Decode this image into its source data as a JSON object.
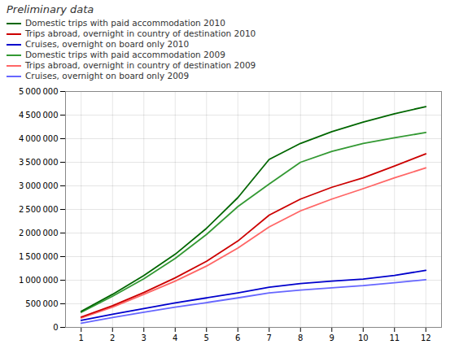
{
  "chart_data": {
    "type": "line",
    "title": "Preliminary data",
    "x": [
      1,
      2,
      3,
      4,
      5,
      6,
      7,
      8,
      9,
      10,
      11,
      12
    ],
    "series": [
      {
        "name": "Domestic trips with paid accommodation  2010",
        "color": "#006600",
        "values": [
          340000,
          700000,
          1100000,
          1550000,
          2100000,
          2750000,
          3560000,
          3900000,
          4150000,
          4350000,
          4530000,
          4680000
        ]
      },
      {
        "name": "Trips abroad, overnight in country  of destination 2010",
        "color": "#cc0000",
        "values": [
          220000,
          460000,
          740000,
          1050000,
          1400000,
          1830000,
          2380000,
          2720000,
          2970000,
          3170000,
          3420000,
          3680000
        ]
      },
      {
        "name": "Cruises, overnight on board only 2010",
        "color": "#0000cc",
        "values": [
          150000,
          280000,
          400000,
          520000,
          625000,
          730000,
          850000,
          930000,
          980000,
          1025000,
          1100000,
          1210000
        ]
      },
      {
        "name": "Domestic trips with paid accommodation  2009",
        "color": "#339933",
        "values": [
          320000,
          660000,
          1030000,
          1460000,
          1970000,
          2560000,
          3040000,
          3500000,
          3730000,
          3900000,
          4020000,
          4130000
        ]
      },
      {
        "name": "Trips abroad, overnight in country  of destination 2009",
        "color": "#ff6666",
        "values": [
          200000,
          430000,
          700000,
          980000,
          1300000,
          1680000,
          2130000,
          2470000,
          2720000,
          2940000,
          3170000,
          3380000
        ]
      },
      {
        "name": "Cruises, overnight on board only 2009",
        "color": "#6666ff",
        "values": [
          90000,
          210000,
          320000,
          430000,
          525000,
          625000,
          730000,
          790000,
          840000,
          885000,
          945000,
          1010000
        ]
      }
    ],
    "xlim": [
      0.5,
      12.5
    ],
    "xticks": [
      1,
      2,
      3,
      4,
      5,
      6,
      7,
      8,
      9,
      10,
      11,
      12
    ],
    "ylim": [
      0,
      5000000
    ],
    "yticks": [
      0,
      {
        "value": 500000,
        "label": "500 000"
      },
      {
        "value": 1000000,
        "label": "1 000 000"
      },
      {
        "value": 1500000,
        "label": "1 500 000"
      },
      {
        "value": 2000000,
        "label": "2 000 000"
      },
      {
        "value": 2500000,
        "label": "2 500 000"
      },
      {
        "value": 3000000,
        "label": "3 000 000"
      },
      {
        "value": 3500000,
        "label": "3 500 000"
      },
      {
        "value": 4000000,
        "label": "4 000 000"
      },
      {
        "value": 4500000,
        "label": "4 500 000"
      },
      {
        "value": 5000000,
        "label": "5 000 000"
      }
    ],
    "grid": true,
    "legend": "upper left"
  }
}
